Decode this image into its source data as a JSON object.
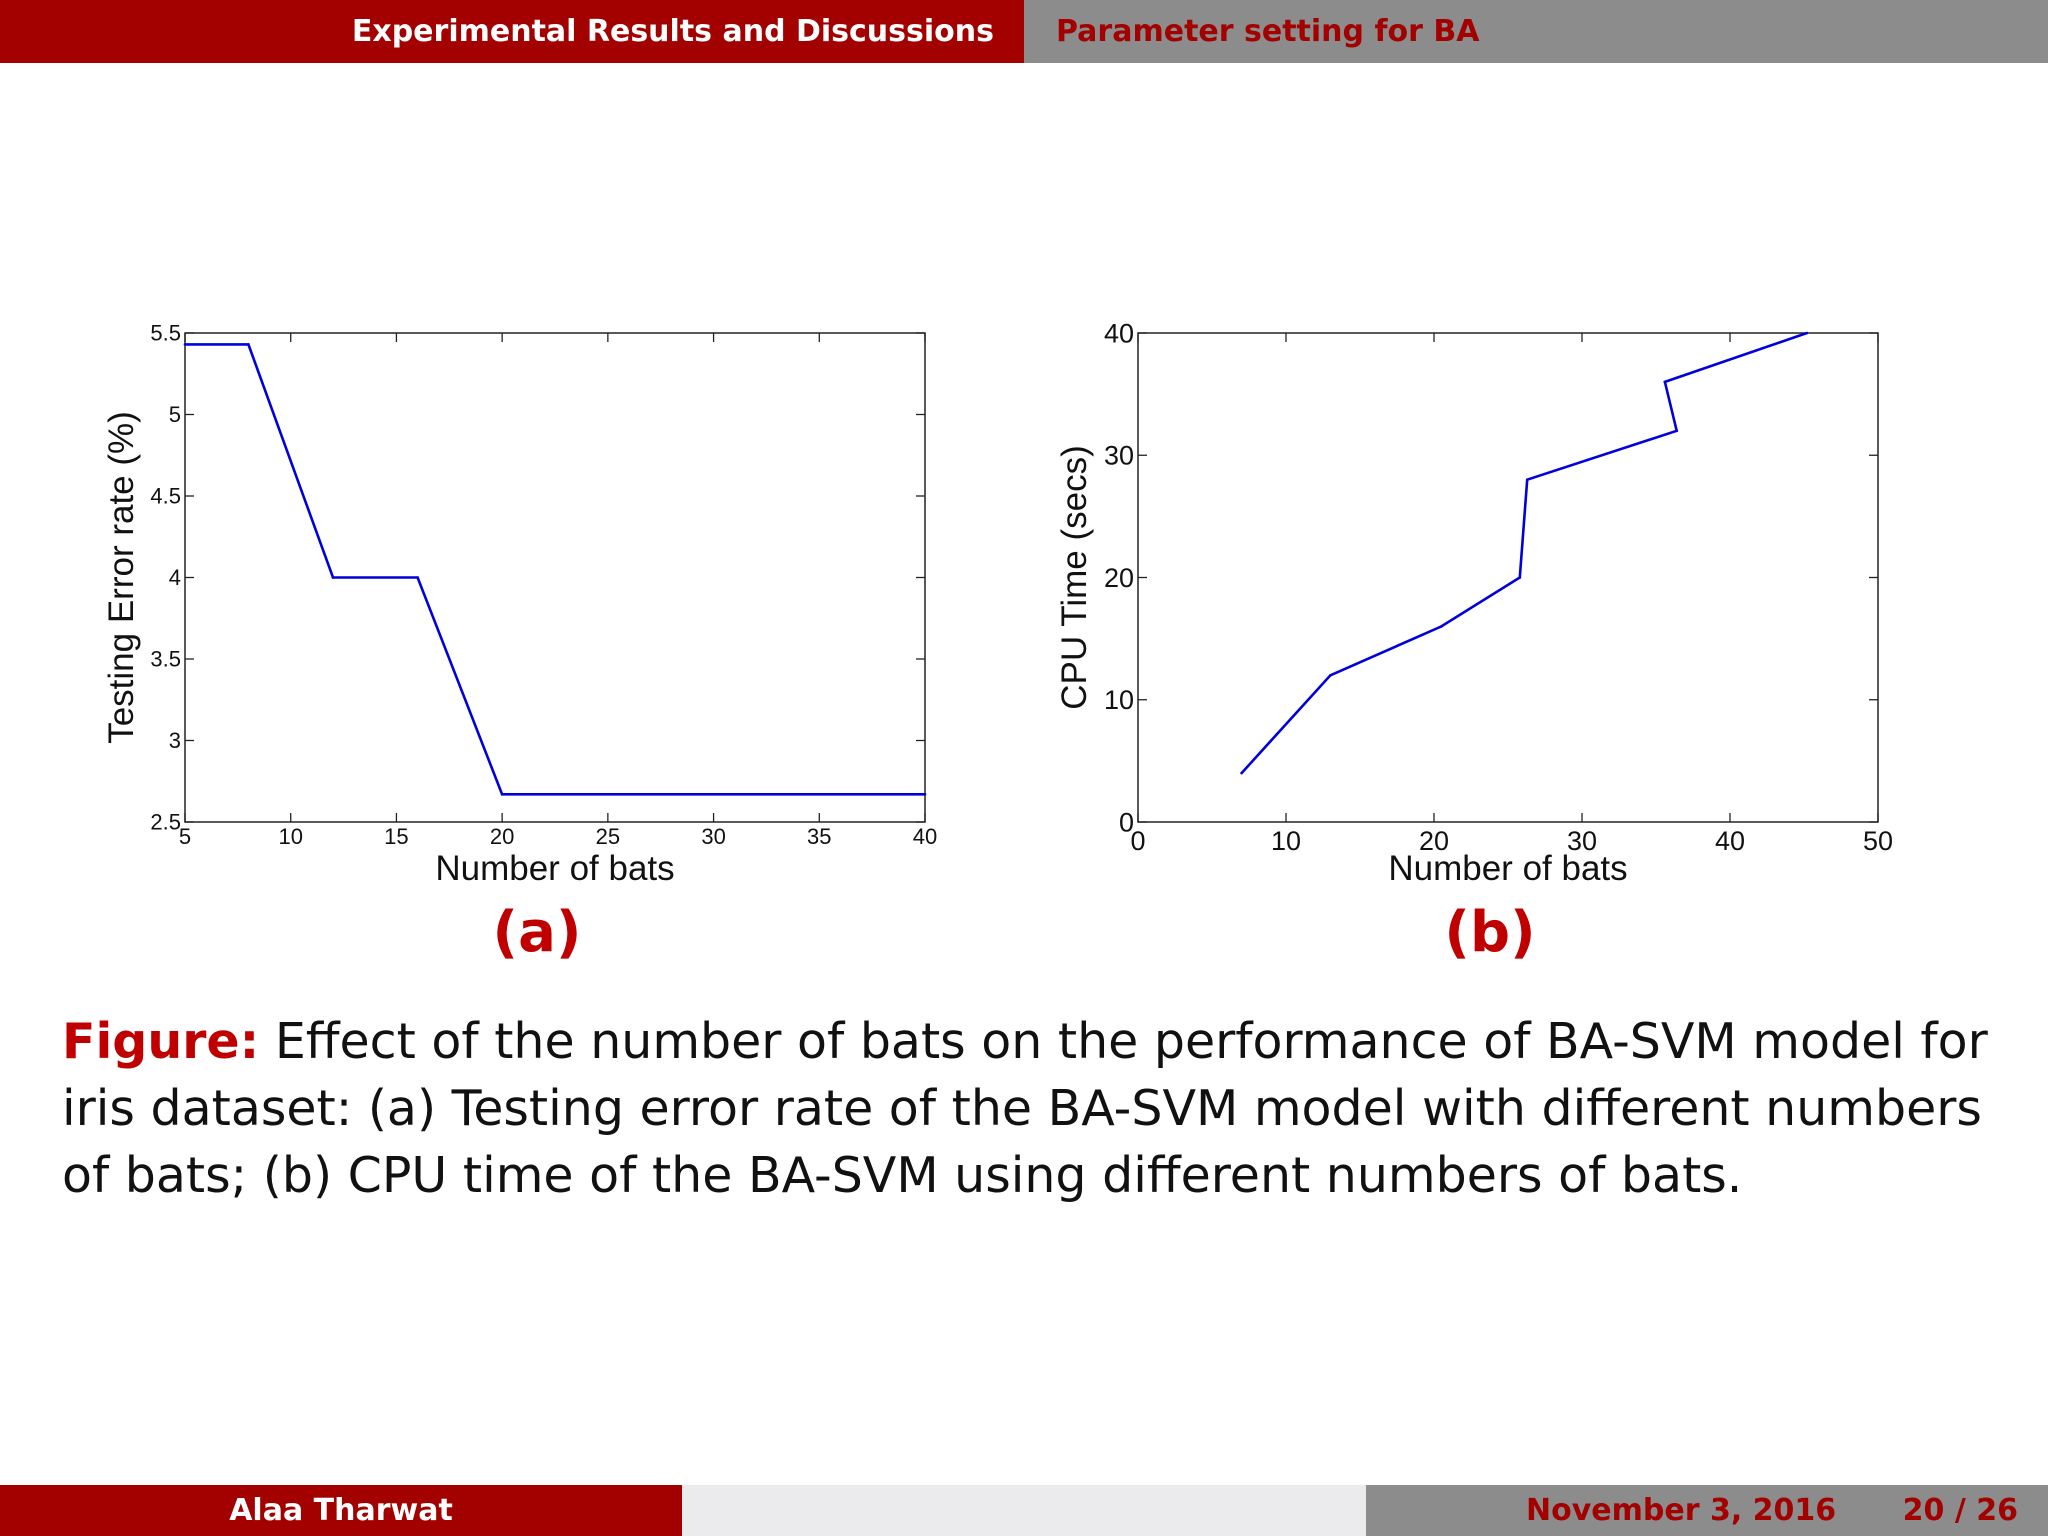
{
  "header": {
    "section": "Experimental Results and Discussions",
    "subsection": "Parameter setting for BA"
  },
  "panels": {
    "a_label": "(a)",
    "b_label": "(b)"
  },
  "caption": {
    "prefix": "Figure:",
    "text": "Effect of the number of bats on the performance of BA-SVM model for iris dataset: (a) Testing error rate of the BA-SVM model with different numbers of bats; (b) CPU time of the BA-SVM using different numbers of bats."
  },
  "footer": {
    "author": "Alaa Tharwat",
    "date": "November 3, 2016",
    "page": "20 / 26"
  },
  "colors": {
    "accent": "#a30000",
    "accent_text": "#c00000",
    "grey_bar": "#8c8c8c",
    "line": "#0000dd"
  },
  "chart_data": [
    {
      "type": "line",
      "xlabel": "Number of bats",
      "ylabel": "Testing Error rate (%)",
      "xlim": [
        5,
        40
      ],
      "ylim": [
        2.5,
        5.5
      ],
      "xticks": [
        5,
        10,
        15,
        20,
        25,
        30,
        35,
        40
      ],
      "yticks": [
        2.5,
        3,
        3.5,
        4,
        4.5,
        5,
        5.5
      ],
      "x": [
        5,
        8,
        12,
        16,
        20,
        40
      ],
      "y": [
        5.43,
        5.43,
        4.0,
        4.0,
        2.67,
        2.67
      ],
      "grid": false
    },
    {
      "type": "line",
      "xlabel": "Number of bats",
      "ylabel": "CPU Time (secs)",
      "xlim": [
        0,
        50
      ],
      "ylim": [
        0,
        40
      ],
      "xticks": [
        0,
        10,
        20,
        30,
        40,
        50
      ],
      "yticks": [
        0,
        10,
        20,
        30,
        40
      ],
      "x": [
        7,
        13,
        20.5,
        25.8,
        26.3,
        36.4,
        35.6,
        45.2
      ],
      "y": [
        4,
        12,
        16,
        20,
        28,
        32,
        36,
        40
      ],
      "grid": false
    }
  ]
}
